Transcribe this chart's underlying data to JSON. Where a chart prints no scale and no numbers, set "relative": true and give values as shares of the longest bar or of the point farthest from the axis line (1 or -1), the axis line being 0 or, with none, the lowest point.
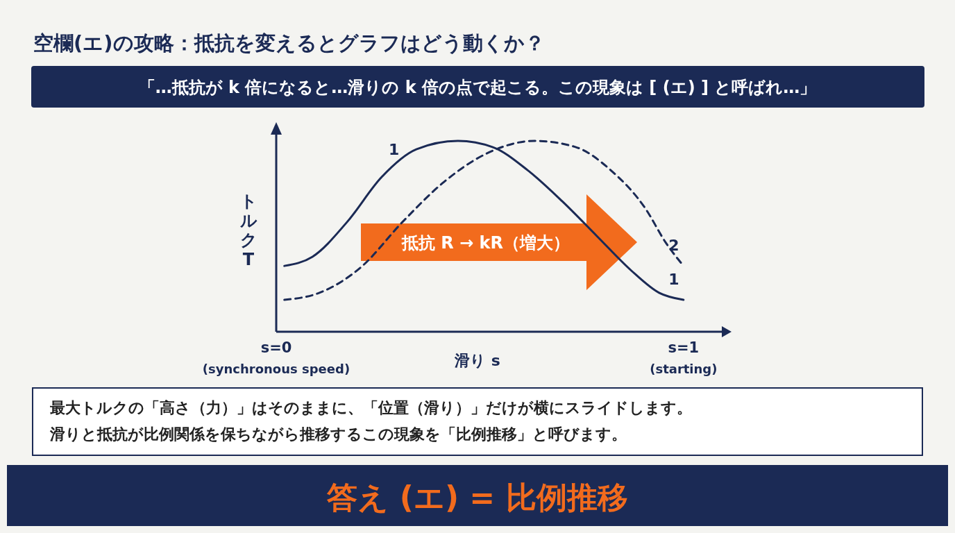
{
  "chart_data": {
    "type": "line",
    "relative": true,
    "title": "空欄(エ)の攻略：抵抗を変えるとグラフはどう動くか？",
    "subtitle": "「…抵抗が k 倍になると…滑りの k 倍の点で起こる。この現象は [ (エ) ] と呼ばれ…」",
    "xlabel": "滑り s",
    "ylabel": "トルク T",
    "xlim": [
      0,
      1.094
    ],
    "xticks": [
      {
        "value": 0,
        "label": "s=0"
      },
      {
        "value": 1,
        "label": "s=1"
      }
    ],
    "legend": false,
    "series": [
      {
        "name": "1",
        "color": "#1b2a55",
        "line_style": "solid",
        "x": [
          0.02,
          0.089,
          0.174,
          0.259,
          0.344,
          0.446,
          0.532,
          0.617,
          0.702,
          0.787,
          0.872,
          0.94,
          1.0
        ],
        "values": [
          0.345,
          0.393,
          0.575,
          0.811,
          0.956,
          1,
          0.967,
          0.847,
          0.684,
          0.502,
          0.32,
          0.204,
          0.167
        ]
      },
      {
        "name": "2",
        "color": "#1b2a55",
        "line_style": "dashed",
        "x": [
          0.02,
          0.106,
          0.208,
          0.31,
          0.412,
          0.514,
          0.634,
          0.736,
          0.821,
          0.906,
          0.957,
          1.0
        ],
        "values": [
          0.167,
          0.204,
          0.338,
          0.575,
          0.785,
          0.931,
          1,
          0.967,
          0.847,
          0.647,
          0.465,
          0.345
        ]
      }
    ],
    "annotations": [
      "抵抗 R → kR（増大）",
      "最大トルクの「高さ（力）」はそのままに、「位置（滑り）」だけが横にスライドします。",
      "滑りと抵抗が比例関係を保ちながら推移するこの現象を「比例推移」と呼びます。",
      "答え (エ) = 比例推移",
      "1",
      "(synchronous speed)",
      "(starting)"
    ]
  }
}
